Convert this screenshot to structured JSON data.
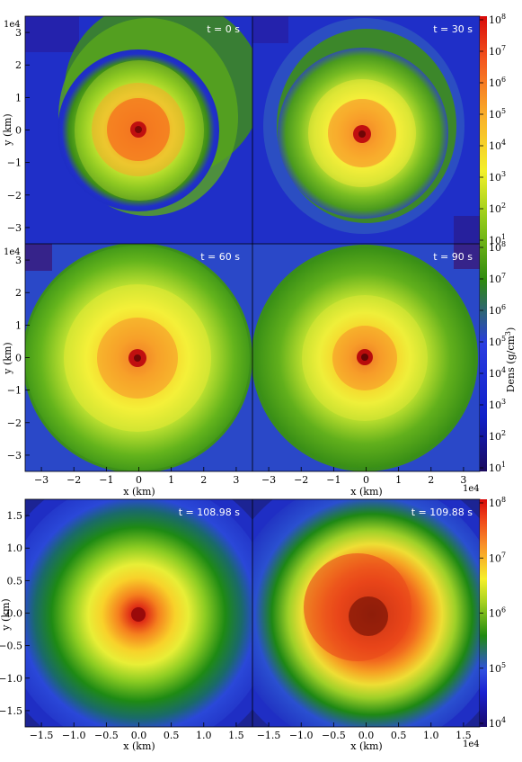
{
  "chart_data": [
    {
      "type": "heatmap",
      "group": "top",
      "panels": [
        {
          "time_label": "t = 0 s"
        },
        {
          "time_label": "t = 30 s"
        },
        {
          "time_label": "t = 60 s"
        },
        {
          "time_label": "t = 90 s"
        }
      ],
      "xlabel": "x  (km)",
      "ylabel": "y  (km)",
      "x_ticks": [
        "−3",
        "−2",
        "−1",
        "0",
        "1",
        "2",
        "3"
      ],
      "y_ticks": [
        "3",
        "2",
        "1",
        "0",
        "−1",
        "−2",
        "−3"
      ],
      "x_scale_label": "1e4",
      "y_scale_label": "1e4",
      "xlim": [
        -35000,
        35000
      ],
      "ylim": [
        -35000,
        35000
      ],
      "colorbar": {
        "label_main": "Dens  (g/cm",
        "label_sup": "3",
        "label_end": ")",
        "scale": "log",
        "range": [
          10,
          100000000
        ],
        "ticks": [
          {
            "base": "10",
            "exp": "8"
          },
          {
            "base": "10",
            "exp": "7"
          },
          {
            "base": "10",
            "exp": "6"
          },
          {
            "base": "10",
            "exp": "5"
          },
          {
            "base": "10",
            "exp": "4"
          },
          {
            "base": "10",
            "exp": "3"
          },
          {
            "base": "10",
            "exp": "2"
          },
          {
            "base": "10",
            "exp": "1"
          }
        ]
      }
    },
    {
      "type": "heatmap",
      "group": "bottom",
      "panels": [
        {
          "time_label": "t = 108.98 s"
        },
        {
          "time_label": "t = 109.88 s"
        }
      ],
      "xlabel": "x  (km)",
      "ylabel": "y  (km)",
      "x_ticks": [
        "−1.5",
        "−1.0",
        "−0.5",
        "0.0",
        "0.5",
        "1.0",
        "1.5"
      ],
      "y_ticks": [
        "1.5",
        "1.0",
        "0.5",
        "0.0",
        "−0.5",
        "−1.0",
        "−1.5"
      ],
      "x_scale_label": "1e4",
      "y_scale_label": "1e4",
      "xlim": [
        -17500,
        17500
      ],
      "ylim": [
        -17500,
        17500
      ],
      "colorbar": {
        "scale": "log",
        "range": [
          10000,
          100000000
        ],
        "ticks": [
          {
            "base": "10",
            "exp": "8"
          },
          {
            "base": "10",
            "exp": "7"
          },
          {
            "base": "10",
            "exp": "6"
          },
          {
            "base": "10",
            "exp": "5"
          },
          {
            "base": "10",
            "exp": "4"
          }
        ]
      }
    }
  ]
}
